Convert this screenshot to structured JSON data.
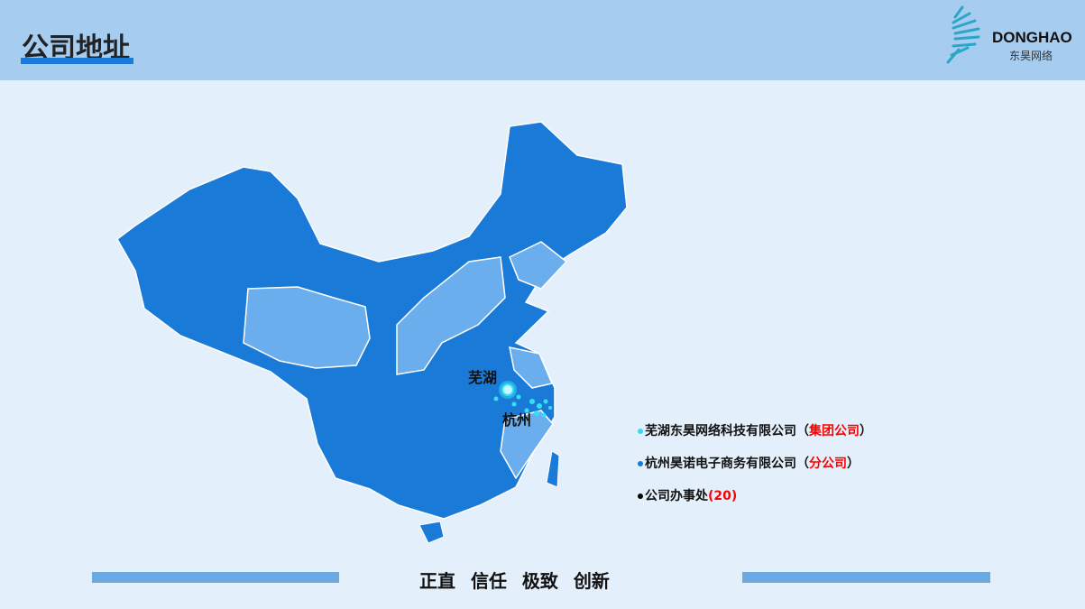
{
  "header": {
    "title": "公司地址"
  },
  "logo": {
    "name": "DONGHAO",
    "name_cn": "东昊网络"
  },
  "map": {
    "cities": [
      {
        "label": "芜湖"
      },
      {
        "label": "杭州"
      }
    ],
    "colors": {
      "province_dark": "#1a7ad8",
      "province_light": "#6aaeed",
      "marker": "#35e0f5"
    }
  },
  "legend": [
    {
      "text": "芜湖东昊网络科技有限公司（",
      "highlight": "集团公司",
      "suffix": "）",
      "dot_color": "#35d8f5"
    },
    {
      "text": "杭州昊诺电子商务有限公司（",
      "highlight": "分公司",
      "suffix": "）",
      "dot_color": "#1a7ad8"
    },
    {
      "text": "公司办事处",
      "highlight": "(20)",
      "suffix": "",
      "dot_color": "#000000"
    }
  ],
  "footer": {
    "motto": "正直 信任 极致 创新"
  }
}
